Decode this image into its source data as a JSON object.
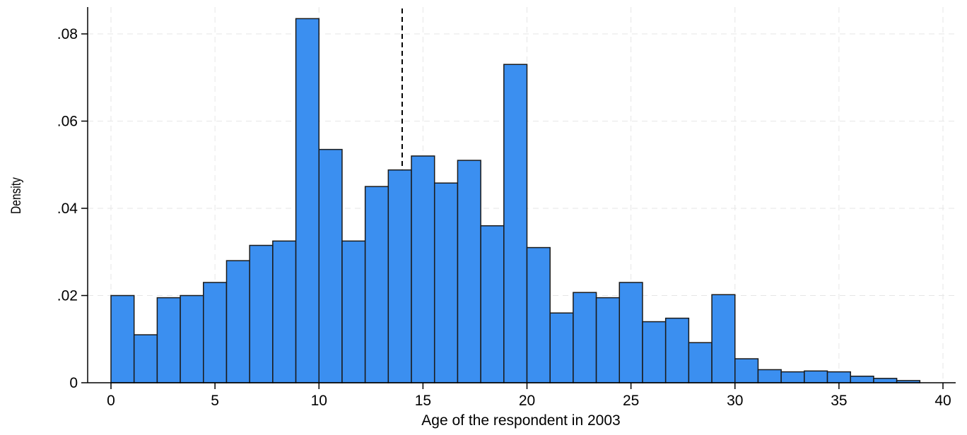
{
  "chart_data": {
    "type": "bar",
    "xlabel": "Age of the respondent in 2003",
    "ylabel": "Density",
    "xlim": [
      0,
      40
    ],
    "ylim": [
      0,
      0.08
    ],
    "xticks": [
      0,
      5,
      10,
      15,
      20,
      25,
      30,
      35,
      40
    ],
    "xtick_labels": [
      "0",
      "5",
      "10",
      "15",
      "20",
      "25",
      "30",
      "35",
      "40"
    ],
    "yticks": [
      0,
      0.02,
      0.04,
      0.06,
      0.08
    ],
    "ytick_labels": [
      "0",
      ".02",
      ".04",
      ".06",
      ".08"
    ],
    "grid": true,
    "bar_color": "#3b8ff0",
    "bar_edge_color": "#1a1a1a",
    "bin_width": 1.111,
    "bins_start": [
      0,
      1.111,
      2.222,
      3.333,
      4.444,
      5.556,
      6.667,
      7.778,
      8.889,
      10.0,
      11.111,
      12.222,
      13.333,
      14.444,
      15.556,
      16.667,
      17.778,
      18.889,
      20.0,
      21.111,
      22.222,
      23.333,
      24.444,
      25.556,
      26.667,
      27.778,
      28.889,
      30.0,
      31.111,
      32.222,
      33.333,
      34.444,
      35.556,
      36.667,
      37.778
    ],
    "values": [
      0.02,
      0.011,
      0.0195,
      0.02,
      0.023,
      0.028,
      0.0315,
      0.0325,
      0.0835,
      0.0535,
      0.0325,
      0.045,
      0.0488,
      0.052,
      0.0458,
      0.051,
      0.036,
      0.073,
      0.031,
      0.016,
      0.0207,
      0.0195,
      0.023,
      0.014,
      0.0148,
      0.0092,
      0.0202,
      0.0055,
      0.003,
      0.0025,
      0.0027,
      0.0025,
      0.0015,
      0.001,
      0.0005
    ],
    "reference_line": {
      "x": 14.0,
      "style": "dashed",
      "color": "#000000"
    }
  }
}
